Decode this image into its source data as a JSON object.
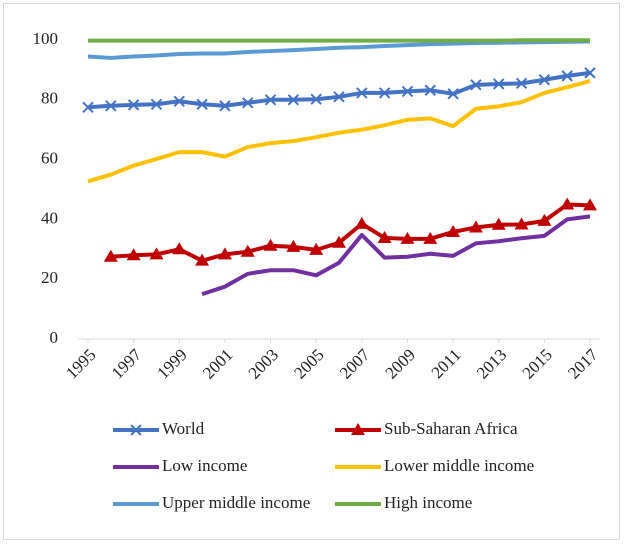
{
  "chart_data": {
    "type": "line",
    "x": [
      1995,
      1996,
      1997,
      1998,
      1999,
      2000,
      2001,
      2002,
      2003,
      2004,
      2005,
      2006,
      2007,
      2008,
      2009,
      2010,
      2011,
      2012,
      2013,
      2014,
      2015,
      2016,
      2017
    ],
    "xlim": [
      1995,
      2017
    ],
    "xticks": [
      1995,
      1997,
      1999,
      2001,
      2003,
      2005,
      2007,
      2009,
      2011,
      2013,
      2015,
      2017
    ],
    "ylim": [
      0,
      100
    ],
    "yticks": [
      0,
      20,
      40,
      60,
      80,
      100
    ],
    "series": [
      {
        "name": "World",
        "color": "#4472c4",
        "marker": "x",
        "values": [
          77.5,
          78,
          78.3,
          78.5,
          79.5,
          78.5,
          78,
          79,
          80,
          80,
          80.2,
          81,
          82.3,
          82.3,
          82.8,
          83.2,
          82,
          85,
          85.3,
          85.5,
          86.7,
          88,
          89
        ]
      },
      {
        "name": "Sub-Saharan Africa",
        "color": "#c00000",
        "marker": "triangle",
        "values": [
          null,
          27.5,
          28,
          28.3,
          30,
          26.2,
          28.3,
          29.2,
          31.2,
          30.8,
          29.8,
          32.2,
          38.5,
          33.8,
          33.5,
          33.5,
          35.8,
          37.3,
          38.2,
          38.3,
          39.5,
          45,
          44.7
        ]
      },
      {
        "name": "Low income",
        "color": "#7030a0",
        "values": [
          null,
          null,
          null,
          null,
          null,
          15,
          17.5,
          21.8,
          23,
          23,
          21.3,
          25.5,
          34.8,
          27.2,
          27.5,
          28.5,
          27.8,
          32,
          32.7,
          33.7,
          34.5,
          40,
          41
        ]
      },
      {
        "name": "Lower middle income",
        "color": "#ffc000",
        "values": [
          52.7,
          55,
          58,
          60.2,
          62.5,
          62.5,
          61,
          64.2,
          65.5,
          66.2,
          67.5,
          69,
          70,
          71.5,
          73.3,
          73.8,
          71.2,
          77,
          77.8,
          79.2,
          82.3,
          84.2,
          86.3
        ]
      },
      {
        "name": "Upper middle income",
        "color": "#5b9bd5",
        "values": [
          94.5,
          94,
          94.5,
          94.8,
          95.3,
          95.5,
          95.5,
          96,
          96.3,
          96.6,
          97,
          97.4,
          97.6,
          98,
          98.3,
          98.6,
          98.8,
          99,
          99.1,
          99.2,
          99.3,
          99.4,
          99.5
        ]
      },
      {
        "name": "High income",
        "color": "#70ad47",
        "values": [
          99.8,
          99.8,
          99.8,
          99.8,
          99.8,
          99.8,
          99.8,
          99.8,
          99.8,
          99.8,
          99.8,
          99.8,
          99.8,
          99.8,
          99.8,
          99.8,
          99.8,
          99.8,
          99.8,
          99.9,
          99.9,
          99.9,
          99.9
        ]
      }
    ]
  }
}
